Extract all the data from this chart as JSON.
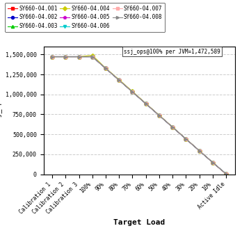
{
  "title": "",
  "xlabel": "Target Load",
  "ylabel": "ssj_ops",
  "annotation": "ssj_ops@100% per JVM=1,472,589",
  "x_labels": [
    "Calibration 1",
    "Calibration 2",
    "Calibration 3",
    "100%",
    "90%",
    "80%",
    "70%",
    "60%",
    "50%",
    "40%",
    "30%",
    "20%",
    "10%",
    "Active Idle"
  ],
  "ylim": [
    0,
    1600000
  ],
  "yticks": [
    0,
    250000,
    500000,
    750000,
    1000000,
    1250000,
    1500000
  ],
  "series": [
    {
      "label": "SY660-04.001",
      "color": "#FF0000",
      "marker": "s",
      "markersize": 3,
      "values": [
        1472589,
        1472589,
        1472589,
        1472589,
        1325330,
        1178071,
        1030812,
        883554,
        736295,
        589036,
        441777,
        294518,
        147259,
        3000
      ]
    },
    {
      "label": "SY660-04.002",
      "color": "#0000CC",
      "marker": "o",
      "markersize": 3,
      "values": [
        1472589,
        1472589,
        1472589,
        1472589,
        1325330,
        1178071,
        1030812,
        883554,
        736295,
        589036,
        441777,
        294518,
        147259,
        4000
      ]
    },
    {
      "label": "SY660-04.003",
      "color": "#00CC00",
      "marker": "^",
      "markersize": 3,
      "values": [
        1472589,
        1472589,
        1472589,
        1472589,
        1325330,
        1178071,
        1030812,
        883554,
        736295,
        589036,
        441777,
        294518,
        147259,
        5000
      ]
    },
    {
      "label": "SY660-04.004",
      "color": "#CCCC00",
      "marker": "D",
      "markersize": 3,
      "values": [
        1472589,
        1472589,
        1472589,
        1490000,
        1330000,
        1185000,
        1038000,
        888000,
        740000,
        592000,
        444000,
        296000,
        148000,
        3500
      ]
    },
    {
      "label": "SY660-04.005",
      "color": "#CC00CC",
      "marker": "p",
      "markersize": 3,
      "values": [
        1472589,
        1472589,
        1472589,
        1472589,
        1325330,
        1178071,
        1030812,
        883554,
        736295,
        589036,
        441777,
        294518,
        147259,
        4500
      ]
    },
    {
      "label": "SY660-04.006",
      "color": "#00CCCC",
      "marker": "v",
      "markersize": 3,
      "values": [
        1472589,
        1472589,
        1472589,
        1472589,
        1325330,
        1178071,
        1030812,
        883554,
        736295,
        589036,
        441777,
        294518,
        147259,
        5500
      ]
    },
    {
      "label": "SY660-04.007",
      "color": "#FFAAAA",
      "marker": "s",
      "markersize": 3,
      "values": [
        1472589,
        1472589,
        1472589,
        1472589,
        1325330,
        1178071,
        1030812,
        883554,
        736295,
        589036,
        441777,
        294518,
        147259,
        4200
      ]
    },
    {
      "label": "SY660-04.008",
      "color": "#888888",
      "marker": ">",
      "markersize": 3,
      "values": [
        1472589,
        1472589,
        1472589,
        1472589,
        1325330,
        1178071,
        1030812,
        883554,
        736295,
        589036,
        441777,
        294518,
        147259,
        3800
      ]
    }
  ],
  "legend_ncol": 3,
  "bg_color": "#FFFFFF",
  "grid_color": "#CCCCCC",
  "font_family": "monospace"
}
